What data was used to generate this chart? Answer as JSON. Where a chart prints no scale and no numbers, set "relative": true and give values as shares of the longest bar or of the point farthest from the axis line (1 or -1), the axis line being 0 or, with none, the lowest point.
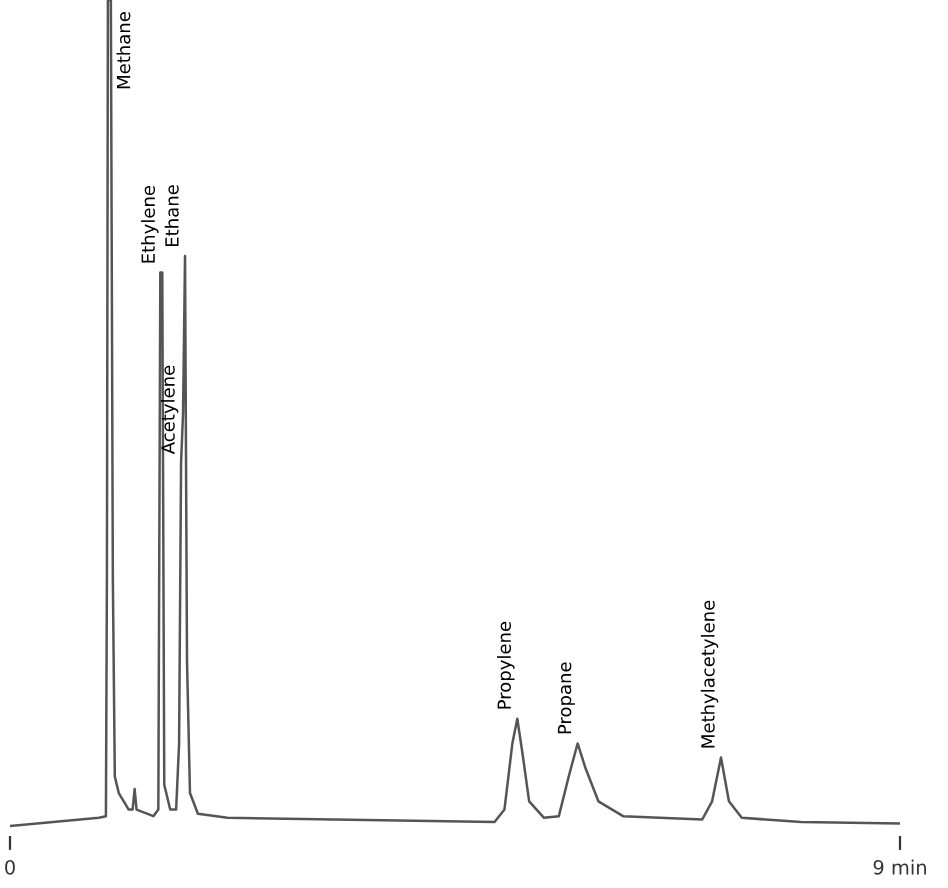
{
  "chart_data": {
    "type": "line",
    "relative": true,
    "tick_labels": "x",
    "grid": false,
    "legend": false,
    "xlim": [
      0,
      9
    ],
    "xticks": [
      0,
      {
        "value": 9,
        "label": "9 min"
      }
    ],
    "series": [
      {
        "color": "#555555",
        "x": [
          0,
          0.9,
          0.97,
          0.98,
          0.99,
          1.02,
          1.04,
          1.06,
          1.1,
          1.2,
          1.24,
          1.26,
          1.28,
          1.45,
          1.5,
          1.52,
          1.54,
          1.56,
          1.62,
          1.68,
          1.71,
          1.73,
          1.75,
          1.77,
          1.79,
          1.82,
          1.9,
          2.2,
          4.9,
          5.0,
          5.08,
          5.13,
          5.18,
          5.25,
          5.4,
          5.55,
          5.65,
          5.74,
          5.82,
          5.95,
          6.2,
          7.0,
          7.1,
          7.19,
          7.27,
          7.4,
          8.0,
          9.0
        ],
        "values": [
          0,
          0.01,
          0.012,
          0.3,
          1,
          1,
          0.3,
          0.06,
          0.04,
          0.02,
          0.02,
          0.045,
          0.02,
          0.012,
          0.02,
          0.67,
          0.67,
          0.05,
          0.02,
          0.02,
          0.1,
          0.44,
          0.5,
          0.69,
          0.2,
          0.04,
          0.015,
          0.01,
          0.005,
          0.02,
          0.1,
          0.13,
          0.09,
          0.03,
          0.01,
          0.012,
          0.06,
          0.1,
          0.07,
          0.03,
          0.012,
          0.008,
          0.03,
          0.083,
          0.03,
          0.01,
          0.005,
          0.003
        ]
      }
    ],
    "annotations": [
      {
        "text": "Methane",
        "x": 1.02,
        "y": 1
      },
      {
        "text": "Ethylene",
        "x": 1.53,
        "y": 0.67
      },
      {
        "text": "Acetylene",
        "x": 1.73,
        "y": 0.44
      },
      {
        "text": "Ethane",
        "x": 1.77,
        "y": 0.69
      },
      {
        "text": "Propylene",
        "x": 5.13,
        "y": 0.13
      },
      {
        "text": "Propane",
        "x": 5.74,
        "y": 0.1
      },
      {
        "text": "Methylacetylene",
        "x": 7.19,
        "y": 0.083
      }
    ]
  }
}
